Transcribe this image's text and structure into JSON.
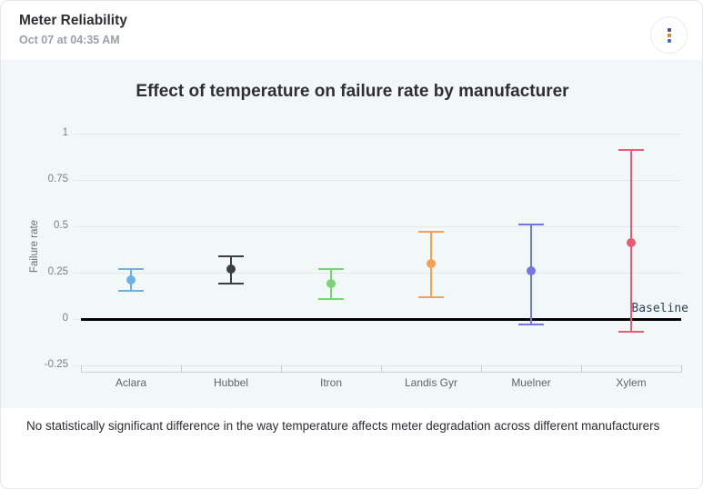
{
  "header": {
    "title": "Meter Reliability",
    "subtitle": "Oct 07 at 04:35 AM",
    "menu_dot_colors": [
      "#4a5580",
      "#e0883f",
      "#4a6fb5"
    ]
  },
  "chart_data": {
    "type": "scatter",
    "title": "Effect of temperature on failure rate by manufacturer",
    "xlabel": "",
    "ylabel": "Failure rate",
    "ylim": [
      -0.25,
      1
    ],
    "grid": true,
    "legend": "none",
    "yticks": [
      {
        "label": "1",
        "value": 1
      },
      {
        "label": "0.75",
        "value": 0.75
      },
      {
        "label": "0.5",
        "value": 0.5
      },
      {
        "label": "0.25",
        "value": 0.25
      },
      {
        "label": "0",
        "value": 0
      },
      {
        "label": "-0.25",
        "value": -0.25
      }
    ],
    "baseline": {
      "value": 0,
      "label": "Baseline",
      "color": "#000000"
    },
    "categories": [
      "Aclara",
      "Hubbel",
      "Itron",
      "Landis Gyr",
      "Muelner",
      "Xylem"
    ],
    "points": [
      {
        "category": "Aclara",
        "value": 0.21,
        "ci_low": 0.15,
        "ci_high": 0.27,
        "color": "#6fb1e3"
      },
      {
        "category": "Hubbel",
        "value": 0.27,
        "ci_low": 0.19,
        "ci_high": 0.34,
        "color": "#3d3d3d"
      },
      {
        "category": "Itron",
        "value": 0.19,
        "ci_low": 0.11,
        "ci_high": 0.27,
        "color": "#79d377"
      },
      {
        "category": "Landis Gyr",
        "value": 0.3,
        "ci_low": 0.12,
        "ci_high": 0.47,
        "color": "#f5a054"
      },
      {
        "category": "Muelner",
        "value": 0.26,
        "ci_low": -0.03,
        "ci_high": 0.51,
        "color": "#7477e0"
      },
      {
        "category": "Xylem",
        "value": 0.41,
        "ci_low": -0.07,
        "ci_high": 0.91,
        "color": "#e85c75"
      }
    ]
  },
  "footer": {
    "note": "No statistically significant difference in the way temperature affects meter degradation across different manufacturers"
  }
}
